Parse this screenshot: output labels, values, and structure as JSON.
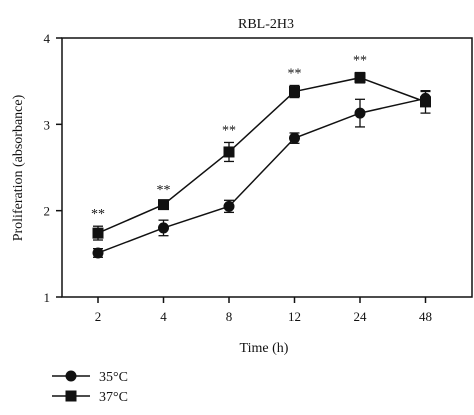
{
  "chart_data": {
    "type": "line",
    "title": "RBL-2H3",
    "xlabel": "Time (h)",
    "ylabel": "Proliferation (absorbance)",
    "categories": [
      "2",
      "4",
      "8",
      "12",
      "24",
      "48"
    ],
    "ylim": [
      1,
      4
    ],
    "yticks": [
      "1",
      "2",
      "3",
      "4"
    ],
    "grid": false,
    "legend_position": "bottom-left",
    "series": [
      {
        "name": "35°C",
        "marker": "circle",
        "color": "#111111",
        "values": [
          1.51,
          1.8,
          2.05,
          2.84,
          3.13,
          3.3
        ],
        "errors": [
          0.05,
          0.09,
          0.07,
          0.06,
          0.16,
          0.08
        ]
      },
      {
        "name": "37°C",
        "marker": "square",
        "color": "#111111",
        "values": [
          1.74,
          2.07,
          2.68,
          3.38,
          3.54,
          3.26
        ],
        "errors": [
          0.08,
          0.03,
          0.11,
          0.07,
          0.06,
          0.13
        ]
      }
    ],
    "significance": [
      "**",
      "**",
      "**",
      "**",
      "**",
      ""
    ]
  }
}
